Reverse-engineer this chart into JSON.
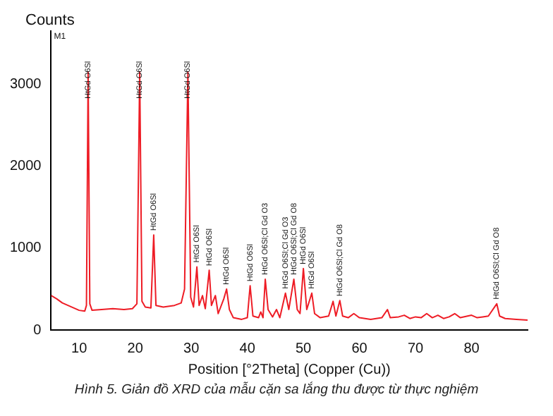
{
  "chart_data": {
    "type": "line",
    "ylabel": "Counts",
    "xlabel": "Position [°2Theta] (Copper (Cu))",
    "color": "#ee1c25",
    "xlim": [
      5,
      90
    ],
    "xticks": [
      10,
      20,
      30,
      40,
      50,
      60,
      70,
      80
    ],
    "ylim": [
      0,
      3650
    ],
    "yticks": [
      0,
      1000,
      2000,
      3000
    ],
    "grid": false,
    "legend": false,
    "marker": "none",
    "x": [
      5,
      6,
      7,
      8,
      9,
      10,
      11,
      11.3,
      11.6,
      11.9,
      12.3,
      14,
      16,
      18,
      19.5,
      20.3,
      20.8,
      21.2,
      21.8,
      22.8,
      23.3,
      23.7,
      25,
      27,
      28.2,
      28.8,
      29.4,
      29.9,
      30.4,
      31.0,
      31.4,
      32.0,
      32.5,
      33.2,
      33.6,
      34.3,
      34.8,
      35.8,
      36.3,
      36.8,
      37.5,
      39,
      40.0,
      40.5,
      41,
      42,
      42.4,
      42.8,
      43.2,
      43.7,
      44.5,
      45.2,
      45.8,
      46.8,
      47.4,
      48.3,
      48.9,
      49.4,
      50.0,
      50.6,
      51.5,
      52,
      53,
      54.5,
      55.3,
      55.8,
      56.5,
      57,
      58,
      59,
      60,
      62,
      64,
      65,
      65.5,
      67,
      68,
      69,
      70,
      71,
      72,
      73,
      74,
      75,
      76,
      77,
      78,
      80,
      81,
      82,
      83,
      84.5,
      85,
      86,
      88,
      90
    ],
    "values": [
      420,
      380,
      330,
      300,
      270,
      240,
      230,
      300,
      3150,
      320,
      240,
      250,
      260,
      250,
      260,
      320,
      3150,
      350,
      280,
      270,
      1160,
      300,
      280,
      300,
      330,
      500,
      3150,
      400,
      280,
      770,
      300,
      420,
      260,
      730,
      300,
      420,
      200,
      380,
      500,
      250,
      150,
      130,
      150,
      540,
      170,
      150,
      220,
      150,
      620,
      250,
      160,
      250,
      150,
      450,
      250,
      620,
      250,
      200,
      750,
      250,
      450,
      200,
      150,
      170,
      350,
      170,
      360,
      170,
      150,
      200,
      150,
      130,
      150,
      250,
      150,
      160,
      180,
      140,
      160,
      150,
      200,
      150,
      180,
      140,
      160,
      200,
      150,
      180,
      150,
      160,
      170,
      320,
      170,
      140,
      130,
      120
    ],
    "annotations": [
      "M1",
      "Hình 5. Giản đồ XRD của mẫu cặn sa lắng thu được từ thực nghiệm",
      {
        "text": "HtGd O6Sl",
        "x": 11.6,
        "y": 3150
      },
      {
        "text": "HtGd O6Sl",
        "x": 20.8,
        "y": 3150
      },
      {
        "text": "HtGd O6Sl",
        "x": 23.3,
        "y": 1160
      },
      {
        "text": "HtGd O6Sl",
        "x": 29.4,
        "y": 3150
      },
      {
        "text": "HtGd O6Sl",
        "x": 31.0,
        "y": 770
      },
      {
        "text": "HtGd O6Sl",
        "x": 33.2,
        "y": 730
      },
      {
        "text": "HtGd O6Sl",
        "x": 36.3,
        "y": 500
      },
      {
        "text": "HtGd O6Sl",
        "x": 40.5,
        "y": 540
      },
      {
        "text": "HtGd O6Sl;Cl Gd O3",
        "x": 43.2,
        "y": 620
      },
      {
        "text": "HtGd O6Sl;Cl Gd O3",
        "x": 46.8,
        "y": 450
      },
      {
        "text": "HtGd O6Sl;Cl Gd O8",
        "x": 48.3,
        "y": 620
      },
      {
        "text": "HtGd O6Sl",
        "x": 50.0,
        "y": 750
      },
      {
        "text": "HtGd O6Sl",
        "x": 51.5,
        "y": 450
      },
      {
        "text": "HtGd O6Sl;Cl Gd O8",
        "x": 56.5,
        "y": 360
      },
      {
        "text": "HtGd O6Sl;Cl Gd O8",
        "x": 84.5,
        "y": 320
      }
    ]
  }
}
